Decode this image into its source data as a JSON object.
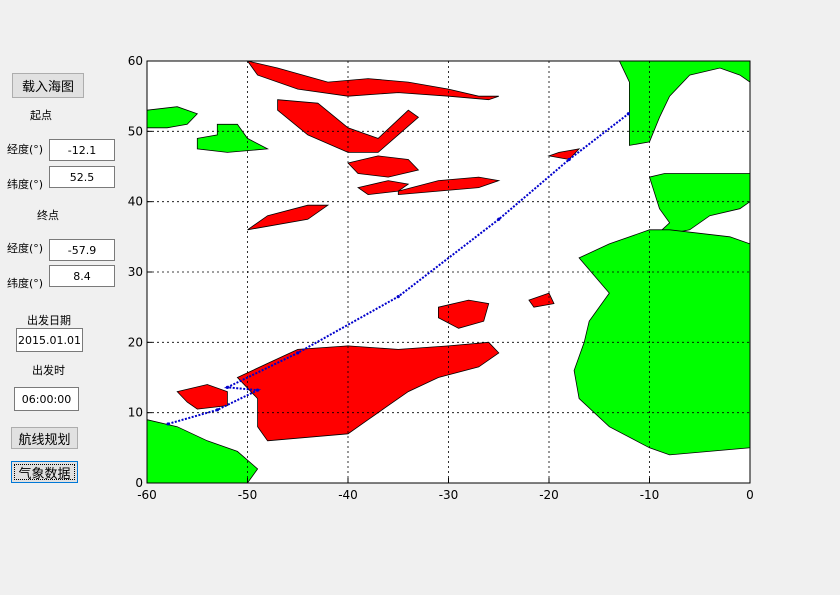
{
  "controls": {
    "load_chart_label": "载入海图",
    "start_label": "起点",
    "start_lon_label": "经度(°)",
    "start_lon_value": "-12.1",
    "start_lat_label": "纬度(°)",
    "start_lat_value": "52.5",
    "end_label": "终点",
    "end_lon_label": "经度(°)",
    "end_lon_value": "-57.9",
    "end_lat_label": "纬度(°)",
    "end_lat_value": "8.4",
    "depart_date_label": "出发日期",
    "depart_date_value": "2015.01.01",
    "depart_time_label": "出发时",
    "depart_time_value": "06:00:00",
    "route_plan_label": "航线规划",
    "weather_label": "气象数据"
  },
  "colors": {
    "land": "#00ff00",
    "hazard": "#ff0000",
    "route": "#0000cc",
    "grid": "#000000"
  },
  "chart_data": {
    "type": "map",
    "xlim": [
      -60,
      0
    ],
    "ylim": [
      0,
      60
    ],
    "xticks": [
      -60,
      -50,
      -40,
      -30,
      -20,
      -10,
      0
    ],
    "yticks": [
      0,
      10,
      20,
      30,
      40,
      50,
      60
    ],
    "grid": true,
    "route": {
      "points": [
        [
          -57.9,
          8.4
        ],
        [
          -53.0,
          10.4
        ],
        [
          -49.0,
          13.2
        ],
        [
          -52.0,
          13.6
        ],
        [
          -45.0,
          18.5
        ],
        [
          -35.0,
          26.5
        ],
        [
          -25.0,
          37.5
        ],
        [
          -18.0,
          46.0
        ],
        [
          -12.1,
          52.5
        ]
      ]
    },
    "land": [
      [
        [
          -60,
          53
        ],
        [
          -57,
          53.5
        ],
        [
          -55,
          52.5
        ],
        [
          -56,
          51
        ],
        [
          -58,
          50.5
        ],
        [
          -60,
          50.5
        ]
      ],
      [
        [
          -55,
          49
        ],
        [
          -53,
          49.5
        ],
        [
          -53,
          51
        ],
        [
          -51,
          51
        ],
        [
          -50,
          49
        ],
        [
          -48,
          47.5
        ],
        [
          -52,
          47
        ],
        [
          -55,
          47.5
        ]
      ],
      [
        [
          -60,
          9
        ],
        [
          -57,
          8
        ],
        [
          -54,
          6
        ],
        [
          -51,
          4.5
        ],
        [
          -49,
          2
        ],
        [
          -50,
          0
        ],
        [
          -60,
          0
        ]
      ],
      [
        [
          -12,
          48
        ],
        [
          -10,
          48.5
        ],
        [
          -9,
          52
        ],
        [
          -8,
          55
        ],
        [
          -6,
          58
        ],
        [
          -3,
          59
        ],
        [
          -1,
          58
        ],
        [
          0,
          57
        ],
        [
          0,
          60
        ],
        [
          -13,
          60
        ],
        [
          -12,
          57
        ]
      ],
      [
        [
          -9.5,
          35
        ],
        [
          -8,
          37
        ],
        [
          -9,
          39
        ],
        [
          -10,
          43.5
        ],
        [
          -8.5,
          44
        ],
        [
          -4,
          44
        ],
        [
          0,
          44
        ],
        [
          0,
          40
        ],
        [
          -1,
          39
        ],
        [
          -4,
          38
        ],
        [
          -6,
          36
        ]
      ],
      [
        [
          -17,
          32
        ],
        [
          -14,
          34
        ],
        [
          -10,
          36
        ],
        [
          -8,
          36
        ],
        [
          -2,
          35
        ],
        [
          0,
          34
        ],
        [
          0,
          5
        ],
        [
          -8,
          4
        ],
        [
          -10,
          5
        ],
        [
          -14,
          8
        ],
        [
          -17,
          12
        ],
        [
          -17.5,
          16
        ],
        [
          -16.5,
          20
        ],
        [
          -16,
          23
        ],
        [
          -14,
          27
        ]
      ]
    ],
    "hazards": [
      [
        [
          -50,
          60
        ],
        [
          -47,
          59
        ],
        [
          -42,
          57
        ],
        [
          -38,
          57.5
        ],
        [
          -34,
          57
        ],
        [
          -30,
          56
        ],
        [
          -27,
          55
        ],
        [
          -25,
          55
        ],
        [
          -26,
          54.5
        ],
        [
          -30,
          55
        ],
        [
          -35,
          55.5
        ],
        [
          -40,
          55
        ],
        [
          -45,
          56
        ],
        [
          -49,
          58
        ]
      ],
      [
        [
          -47,
          54.5
        ],
        [
          -43,
          54
        ],
        [
          -40,
          50.5
        ],
        [
          -37,
          49
        ],
        [
          -34,
          53
        ],
        [
          -33,
          52
        ],
        [
          -37,
          47
        ],
        [
          -40,
          47
        ],
        [
          -44,
          49.5
        ],
        [
          -47,
          53
        ]
      ],
      [
        [
          -40,
          45.5
        ],
        [
          -37,
          46.5
        ],
        [
          -34,
          46
        ],
        [
          -33,
          44.5
        ],
        [
          -36,
          43.5
        ],
        [
          -39,
          44
        ]
      ],
      [
        [
          -39,
          42
        ],
        [
          -36,
          43
        ],
        [
          -34,
          42.5
        ],
        [
          -35,
          41.5
        ],
        [
          -38,
          41
        ]
      ],
      [
        [
          -35,
          41.5
        ],
        [
          -31,
          43
        ],
        [
          -27,
          43.5
        ],
        [
          -25,
          43
        ],
        [
          -27,
          42
        ],
        [
          -31,
          41.5
        ],
        [
          -35,
          41
        ]
      ],
      [
        [
          -50,
          36
        ],
        [
          -48,
          38
        ],
        [
          -44,
          39.5
        ],
        [
          -42,
          39.5
        ],
        [
          -44,
          37.5
        ],
        [
          -48,
          36.5
        ]
      ],
      [
        [
          -19,
          47
        ],
        [
          -17,
          47.5
        ],
        [
          -18,
          46
        ],
        [
          -20,
          46.5
        ]
      ],
      [
        [
          -31,
          25
        ],
        [
          -28,
          26
        ],
        [
          -26,
          25.5
        ],
        [
          -26.5,
          23
        ],
        [
          -29,
          22
        ],
        [
          -31,
          23.5
        ]
      ],
      [
        [
          -22,
          26
        ],
        [
          -20,
          27
        ],
        [
          -19.5,
          25.5
        ],
        [
          -21.5,
          25
        ]
      ],
      [
        [
          -51,
          15
        ],
        [
          -48,
          17
        ],
        [
          -45,
          19
        ],
        [
          -40,
          19.5
        ],
        [
          -35,
          19
        ],
        [
          -30,
          19.5
        ],
        [
          -26,
          20
        ],
        [
          -25,
          18.5
        ],
        [
          -27,
          16.5
        ],
        [
          -31,
          15
        ],
        [
          -34,
          13
        ],
        [
          -36,
          11
        ],
        [
          -38,
          9
        ],
        [
          -40,
          7
        ],
        [
          -44,
          6.5
        ],
        [
          -48,
          6
        ],
        [
          -49,
          8
        ],
        [
          -49,
          12
        ]
      ],
      [
        [
          -57,
          13
        ],
        [
          -54,
          14
        ],
        [
          -52,
          13
        ],
        [
          -52,
          11
        ],
        [
          -55,
          10.5
        ],
        [
          -56,
          11.5
        ]
      ]
    ]
  }
}
